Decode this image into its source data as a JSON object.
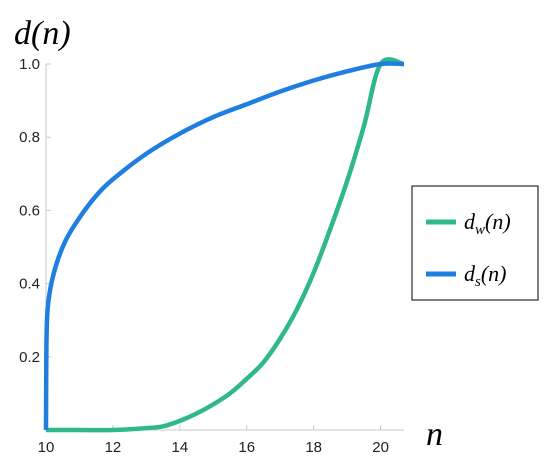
{
  "chart_data": {
    "type": "line",
    "xlabel": "n",
    "ylabel": "d(n)",
    "xlim": [
      10,
      20.7
    ],
    "ylim": [
      0,
      1.0
    ],
    "x_ticks": [
      10,
      12,
      14,
      16,
      18,
      20
    ],
    "y_ticks": [
      0.2,
      0.4,
      0.6,
      0.8,
      1.0
    ],
    "x_tick_labels": [
      "10",
      "12",
      "14",
      "16",
      "18",
      "20"
    ],
    "y_tick_labels": [
      "0.2",
      "0.4",
      "0.6",
      "0.8",
      "1.0"
    ],
    "legend_position": "right",
    "series": [
      {
        "name_base": "d",
        "name_sub": "w",
        "name_tail": "(n)",
        "color": "#2fb88a",
        "x": [
          10,
          11,
          12,
          13,
          13.5,
          14,
          14.5,
          15,
          15.5,
          16,
          16.5,
          17,
          17.5,
          18,
          18.5,
          19,
          19.5,
          20,
          20.7
        ],
        "y": [
          0.0,
          0.0,
          0.0,
          0.005,
          0.01,
          0.025,
          0.045,
          0.07,
          0.1,
          0.14,
          0.185,
          0.25,
          0.33,
          0.43,
          0.55,
          0.68,
          0.83,
          1.0,
          1.0
        ]
      },
      {
        "name_base": "d",
        "name_sub": "s",
        "name_tail": "(n)",
        "color": "#1f7fe0",
        "x": [
          10,
          10.02,
          10.1,
          10.3,
          10.6,
          11,
          11.5,
          12,
          13,
          14,
          15,
          16,
          17,
          18,
          19,
          20,
          20.7
        ],
        "y": [
          0.0,
          0.27,
          0.37,
          0.45,
          0.52,
          0.58,
          0.64,
          0.685,
          0.755,
          0.81,
          0.855,
          0.89,
          0.925,
          0.955,
          0.98,
          1.0,
          1.0
        ]
      }
    ]
  }
}
